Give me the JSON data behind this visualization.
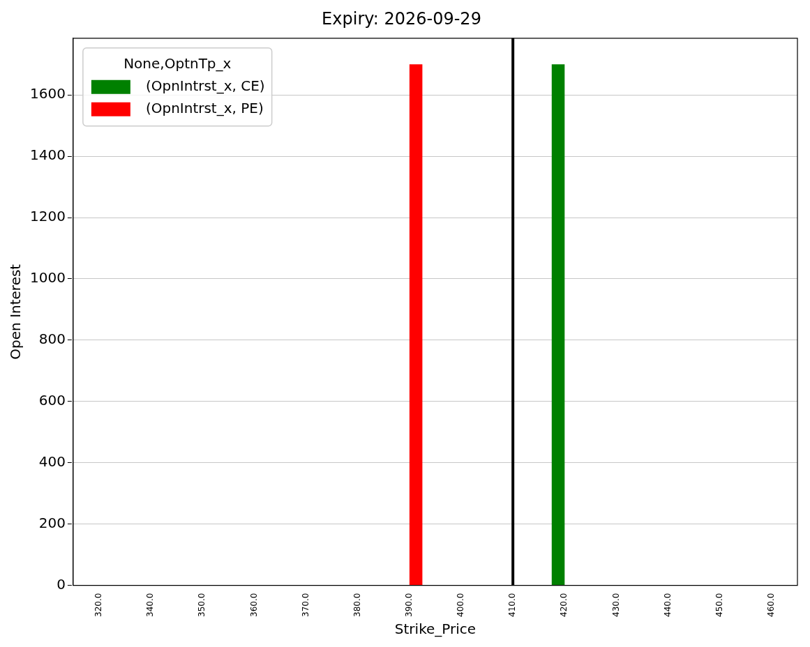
{
  "chart_data": {
    "type": "bar",
    "title": "Expiry: 2026-09-29",
    "xlabel": "Strike_Price",
    "ylabel": "Open Interest",
    "legend_title": "None,OptnTp_x",
    "categories": [
      "320.0",
      "340.0",
      "350.0",
      "360.0",
      "370.0",
      "380.0",
      "390.0",
      "400.0",
      "410.0",
      "420.0",
      "430.0",
      "440.0",
      "450.0",
      "460.0"
    ],
    "series": [
      {
        "name": "(OpnIntrst_x, CE)",
        "color": "#008000",
        "values": [
          null,
          null,
          null,
          null,
          null,
          null,
          null,
          null,
          null,
          1700,
          null,
          null,
          null,
          null
        ]
      },
      {
        "name": "(OpnIntrst_x, PE)",
        "color": "#ff0000",
        "values": [
          null,
          null,
          null,
          null,
          null,
          null,
          1700,
          null,
          null,
          null,
          null,
          null,
          null,
          null
        ]
      }
    ],
    "ylim": [
      0,
      1785
    ],
    "yticks": [
      0,
      200,
      400,
      600,
      800,
      1000,
      1200,
      1400,
      1600
    ],
    "grid": "y",
    "legend": "top left",
    "ref_lines": [
      {
        "axis": "x",
        "value": "410.0",
        "color": "#000000"
      }
    ]
  }
}
